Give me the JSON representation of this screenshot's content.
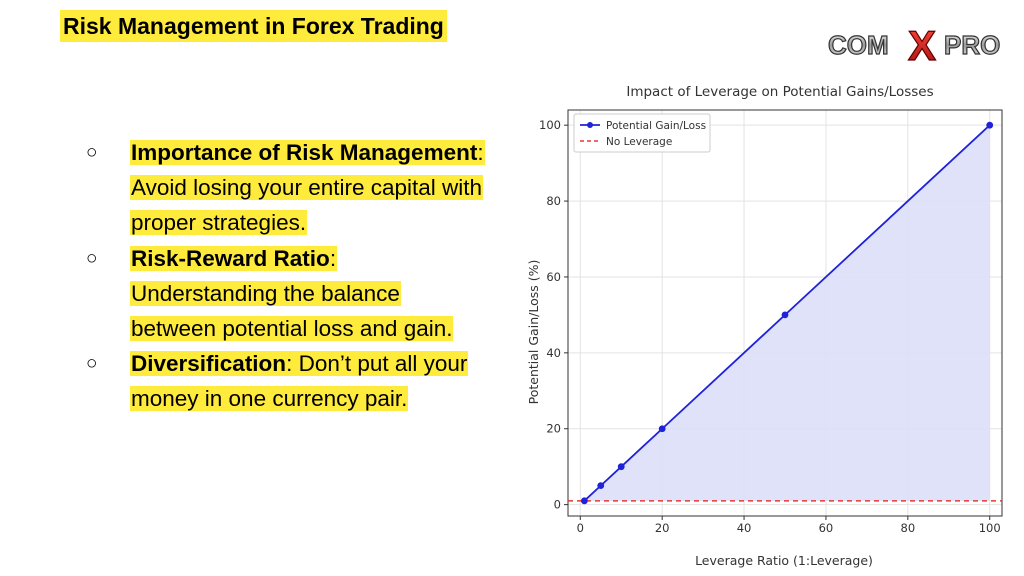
{
  "slide": {
    "title": "Risk Management in Forex Trading",
    "logo_text": {
      "part1": "COM",
      "part2": "X",
      "part3": "PRO"
    }
  },
  "bullets": [
    {
      "marker": "○",
      "term": "Importance of Risk Management",
      "sep": ":",
      "text": " Avoid losing your entire capital with proper strategies."
    },
    {
      "marker": "○",
      "term": "Risk-Reward Ratio",
      "sep": ":",
      "text": " Understanding the balance between potential loss and gain."
    },
    {
      "marker": "○",
      "term": "Diversification",
      "sep": ":",
      "text": " Don’t put all your money in one currency pair."
    }
  ],
  "chart_data": {
    "type": "line",
    "title": "Impact of Leverage on Potential Gains/Losses",
    "xlabel": "Leverage Ratio (1:Leverage)",
    "ylabel": "Potential Gain/Loss (%)",
    "xlim": [
      -3,
      103
    ],
    "ylim": [
      -3,
      104
    ],
    "xticks": [
      0,
      20,
      40,
      60,
      80,
      100
    ],
    "yticks": [
      0,
      20,
      40,
      60,
      80,
      100
    ],
    "grid": true,
    "legend_position": "top-left",
    "series": [
      {
        "name": "Potential Gain/Loss",
        "style": "solid-markers",
        "fill": true,
        "color": "#1f22d8",
        "fill_color": "#dcdff8",
        "x": [
          1,
          5,
          10,
          20,
          50,
          100
        ],
        "y": [
          1,
          5,
          10,
          20,
          50,
          100
        ]
      },
      {
        "name": "No Leverage",
        "style": "dashed",
        "color": "#e53935",
        "x": [
          -3,
          103
        ],
        "y": [
          1,
          1
        ]
      }
    ]
  }
}
